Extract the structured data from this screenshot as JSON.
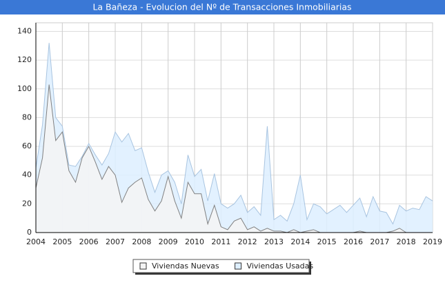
{
  "chart_data": {
    "type": "line",
    "title": "La Bañeza - Evolucion del Nº de Transacciones Inmobiliarias",
    "x": [
      2004,
      2004.25,
      2004.5,
      2004.75,
      2005,
      2005.25,
      2005.5,
      2005.75,
      2006,
      2006.25,
      2006.5,
      2006.75,
      2007,
      2007.25,
      2007.5,
      2007.75,
      2008,
      2008.25,
      2008.5,
      2008.75,
      2009,
      2009.25,
      2009.5,
      2009.75,
      2010,
      2010.25,
      2010.5,
      2010.75,
      2011,
      2011.25,
      2011.5,
      2011.75,
      2012,
      2012.25,
      2012.5,
      2012.75,
      2013,
      2013.25,
      2013.5,
      2013.75,
      2014,
      2014.25,
      2014.5,
      2014.75,
      2015,
      2015.25,
      2015.5,
      2015.75,
      2016,
      2016.25,
      2016.5,
      2016.75,
      2017,
      2017.25,
      2017.5,
      2017.75,
      2018,
      2018.25,
      2018.5,
      2018.75,
      2019
    ],
    "series": [
      {
        "name": "Viviendas Nuevas",
        "color": "#808080",
        "fill": "#f4f4f4",
        "values": [
          31,
          52,
          103,
          64,
          70,
          43,
          35,
          52,
          60,
          49,
          37,
          46,
          40,
          21,
          31,
          35,
          38,
          23,
          15,
          22,
          39,
          22,
          10,
          35,
          27,
          27,
          6,
          19,
          4,
          2,
          8,
          10,
          2,
          4,
          1,
          3,
          1,
          1,
          0,
          2,
          0,
          1,
          2,
          0,
          0,
          0,
          0,
          0,
          0,
          1,
          0,
          0,
          0,
          0,
          1,
          3,
          0,
          null,
          null,
          null,
          null
        ]
      },
      {
        "name": "Viviendas Usadas",
        "color": "#a8c4e0",
        "fill": "#ddeeff",
        "values": [
          45,
          75,
          132,
          80,
          74,
          47,
          46,
          53,
          62,
          54,
          47,
          55,
          70,
          63,
          69,
          57,
          59,
          42,
          28,
          40,
          43,
          35,
          20,
          54,
          39,
          44,
          22,
          41,
          20,
          17,
          20,
          26,
          14,
          18,
          12,
          74,
          9,
          12,
          8,
          20,
          40,
          9,
          20,
          18,
          13,
          16,
          19,
          14,
          19,
          24,
          11,
          25,
          15,
          14,
          6,
          19,
          15,
          17,
          16,
          25,
          22
        ]
      }
    ],
    "xlim": [
      2004,
      2019
    ],
    "xticks": [
      2004,
      2005,
      2006,
      2007,
      2008,
      2009,
      2010,
      2011,
      2012,
      2013,
      2014,
      2015,
      2016,
      2017,
      2018,
      2019
    ],
    "ylim": [
      0,
      146
    ],
    "yticks": [
      0,
      20,
      40,
      60,
      80,
      100,
      120,
      140
    ],
    "grid": true
  }
}
